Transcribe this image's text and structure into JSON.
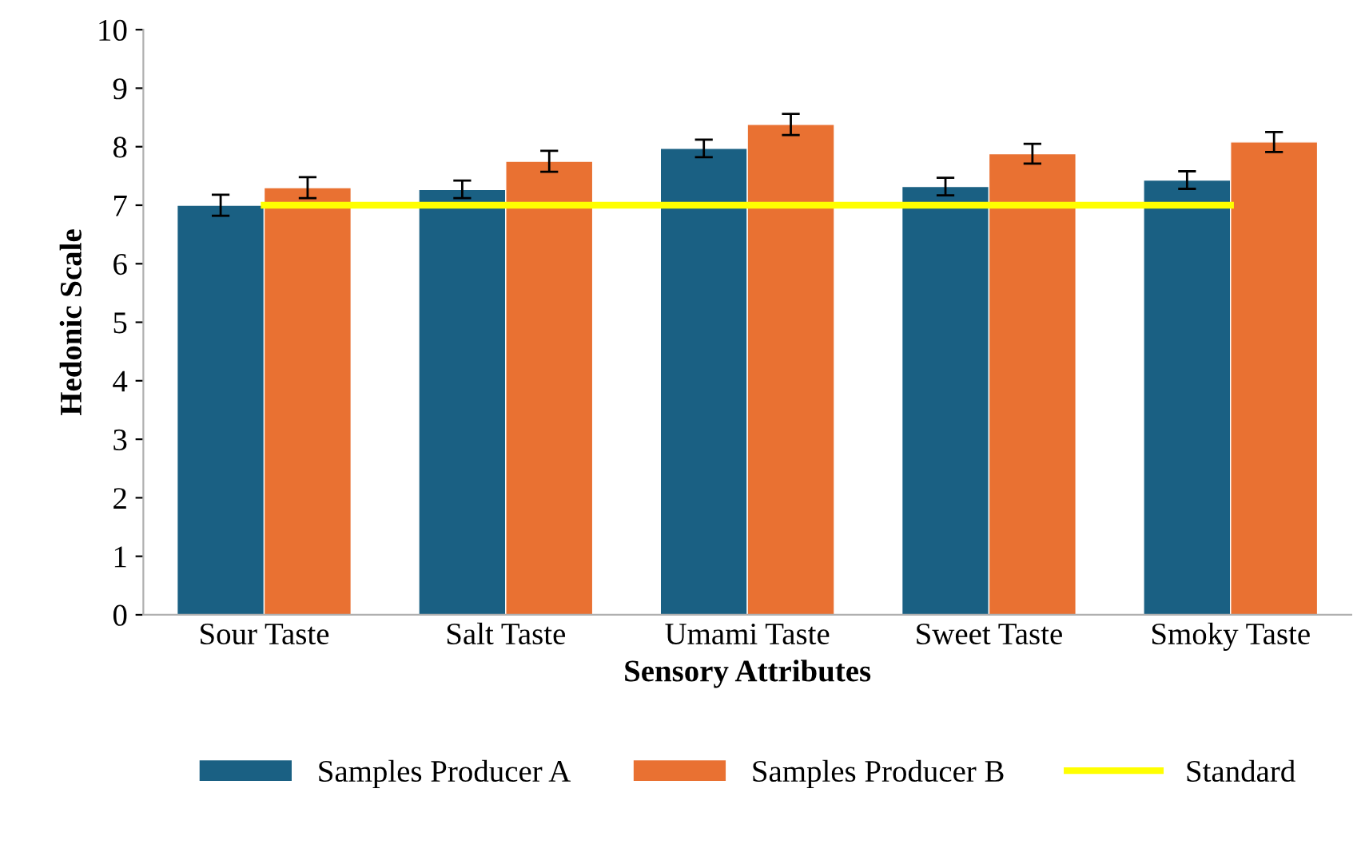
{
  "chart_data": {
    "type": "bar",
    "xlabel": "Sensory Attributes",
    "ylabel": "Hedonic Scale",
    "categories": [
      "Sour Taste",
      "Salt Taste",
      "Umami Taste",
      "Sweet Taste",
      "Smoky Taste"
    ],
    "series": [
      {
        "name": "Samples Producer A",
        "color": "#1a6083",
        "values": [
          7.0,
          7.27,
          7.97,
          7.32,
          7.43
        ],
        "errors": [
          0.18,
          0.15,
          0.15,
          0.15,
          0.15
        ]
      },
      {
        "name": "Samples Producer B",
        "color": "#e97132",
        "values": [
          7.3,
          7.75,
          8.38,
          7.88,
          8.08
        ],
        "errors": [
          0.18,
          0.18,
          0.18,
          0.17,
          0.17
        ]
      },
      {
        "name": "Standard",
        "type": "line",
        "color": "#ffff00",
        "values": [
          7,
          7,
          7,
          7,
          7
        ]
      }
    ],
    "ylim": [
      0,
      10
    ],
    "yticks": [
      0,
      1,
      2,
      3,
      4,
      5,
      6,
      7,
      8,
      9,
      10
    ],
    "grid": false,
    "legend": "bottom"
  }
}
